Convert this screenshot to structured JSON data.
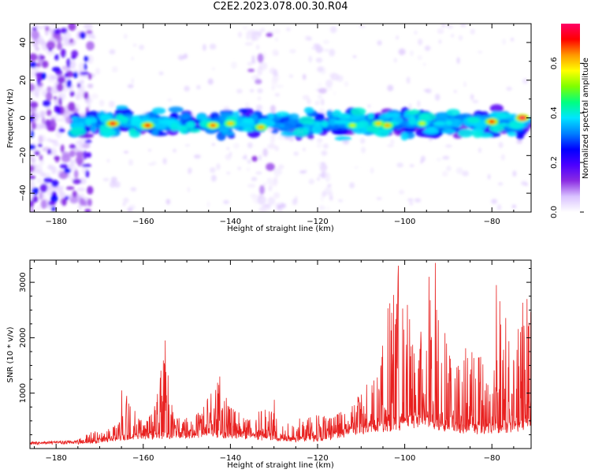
{
  "title": "C2E2.2023.078.00.30.R04",
  "colors": {
    "snr_line": "#e8201f",
    "colormap": [
      "#ffffff",
      "#d9c2ff",
      "#8a2be2",
      "#4b00ff",
      "#0000ff",
      "#0080ff",
      "#00e5ff",
      "#00ff80",
      "#7fff00",
      "#ffff00",
      "#ff9900",
      "#ff0000",
      "#ff0066"
    ]
  },
  "chart_data": [
    {
      "type": "heatmap",
      "title": "C2E2.2023.078.00.30.R04",
      "xlabel": "Height of straight line (km)",
      "ylabel": "Frequency (Hz)",
      "xlim": [
        -186,
        -71
      ],
      "ylim": [
        -50,
        50
      ],
      "x_ticks": [
        -180,
        -160,
        -140,
        -120,
        -100,
        -80
      ],
      "y_ticks": [
        -40,
        -20,
        0,
        20,
        40
      ],
      "colorbar": {
        "label": "Normalized spectral amplitude",
        "range": [
          0.0,
          0.76
        ],
        "ticks": [
          0.0,
          0.2,
          0.4,
          0.6
        ]
      },
      "features": [
        {
          "name": "main band",
          "x_range": [
            -176,
            -71
          ],
          "frequency_center": -3,
          "frequency_width": 10,
          "peak_amplitude": 0.76
        },
        {
          "name": "broadband noise",
          "x_range": [
            -186,
            -172
          ],
          "frequency_range": [
            -50,
            50
          ],
          "peak_amplitude": 0.3
        },
        {
          "name": "vertical stripe",
          "x_range": [
            -136,
            -128
          ],
          "frequency_range": [
            -50,
            50
          ],
          "peak_amplitude": 0.15
        },
        {
          "name": "vertical stripe",
          "x_range": [
            -120,
            -116
          ],
          "frequency_range": [
            -50,
            50
          ],
          "peak_amplitude": 0.1
        }
      ],
      "hot_spots": [
        {
          "x": -167,
          "f": -3,
          "amplitude": 0.72
        },
        {
          "x": -159,
          "f": -4,
          "amplitude": 0.7
        },
        {
          "x": -144,
          "f": -4,
          "amplitude": 0.66
        },
        {
          "x": -140,
          "f": -3,
          "amplitude": 0.6
        },
        {
          "x": -133,
          "f": -5,
          "amplitude": 0.62
        },
        {
          "x": -112,
          "f": -4,
          "amplitude": 0.55
        },
        {
          "x": -106,
          "f": -3,
          "amplitude": 0.6
        },
        {
          "x": -104,
          "f": -4,
          "amplitude": 0.62
        },
        {
          "x": -96,
          "f": -3,
          "amplitude": 0.55
        },
        {
          "x": -80,
          "f": -2,
          "amplitude": 0.7
        },
        {
          "x": -73,
          "f": 0,
          "amplitude": 0.76
        }
      ]
    },
    {
      "type": "line",
      "xlabel": "Height of straight line (km)",
      "ylabel": "SNR (10 * v/v)",
      "xlim": [
        -186,
        -71
      ],
      "ylim": [
        0,
        3400
      ],
      "x_ticks": [
        -180,
        -160,
        -140,
        -120,
        -100,
        -80
      ],
      "y_ticks": [
        1000,
        2000,
        3000
      ],
      "envelope": {
        "x": [
          -186,
          -176,
          -172,
          -168,
          -165,
          -164,
          -160,
          -157,
          -155,
          -153,
          -148,
          -145,
          -143,
          -140,
          -136,
          -131,
          -128,
          -124,
          -120,
          -116,
          -112,
          -109,
          -106,
          -104,
          -102,
          -100,
          -97,
          -95,
          -94,
          -92,
          -88,
          -85,
          -82,
          -80,
          -78,
          -75,
          -73,
          -72,
          -71
        ],
        "y": [
          80,
          110,
          300,
          350,
          500,
          1050,
          450,
          850,
          1950,
          550,
          600,
          950,
          1300,
          750,
          550,
          850,
          420,
          550,
          650,
          600,
          800,
          1200,
          1650,
          2500,
          3300,
          3000,
          1700,
          3100,
          3350,
          2400,
          1700,
          2100,
          1700,
          1100,
          2900,
          1600,
          2700,
          2600,
          2900
        ]
      },
      "baseline": {
        "x": [
          -186,
          -172,
          -165,
          -155,
          -145,
          -136,
          -128,
          -118,
          -108,
          -100,
          -95,
          -90,
          -80,
          -71
        ],
        "y": [
          120,
          150,
          250,
          300,
          350,
          300,
          200,
          250,
          500,
          600,
          700,
          500,
          450,
          600
        ]
      },
      "peaks": [
        {
          "x": -165,
          "y": 1050
        },
        {
          "x": -155,
          "y": 1950
        },
        {
          "x": -142.5,
          "y": 1300
        },
        {
          "x": -130,
          "y": 880
        },
        {
          "x": -103,
          "y": 2450
        },
        {
          "x": -101.5,
          "y": 3300
        },
        {
          "x": -94.5,
          "y": 3100
        },
        {
          "x": -93,
          "y": 3350
        },
        {
          "x": -79,
          "y": 2950
        },
        {
          "x": -72,
          "y": 2700
        }
      ]
    }
  ]
}
